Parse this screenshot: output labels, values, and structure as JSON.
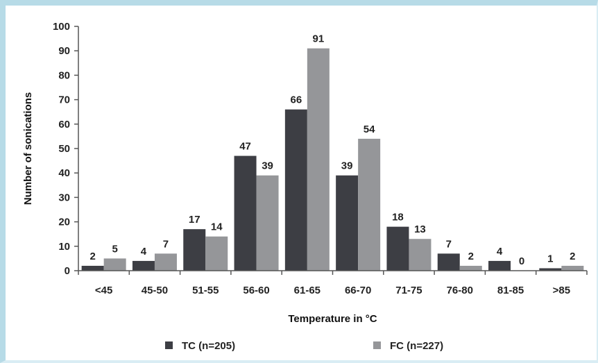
{
  "chart_data": {
    "type": "bar",
    "title": "",
    "xlabel": "Temperature in °C",
    "ylabel": "Number of sonications",
    "ylim": [
      0,
      100
    ],
    "yticks": [
      0,
      10,
      20,
      30,
      40,
      50,
      60,
      70,
      80,
      90,
      100
    ],
    "categories": [
      "<45",
      "45-50",
      "51-55",
      "56-60",
      "61-65",
      "66-70",
      "71-75",
      "76-80",
      "81-85",
      ">85"
    ],
    "series": [
      {
        "name": "TC (n=205)",
        "color": "#3d3e44",
        "values": [
          2,
          4,
          17,
          47,
          66,
          39,
          18,
          7,
          4,
          1
        ]
      },
      {
        "name": "FC (n=227)",
        "color": "#959699",
        "values": [
          5,
          7,
          14,
          39,
          91,
          54,
          13,
          2,
          0,
          2
        ]
      }
    ],
    "grid": false,
    "legend": "bottom"
  }
}
